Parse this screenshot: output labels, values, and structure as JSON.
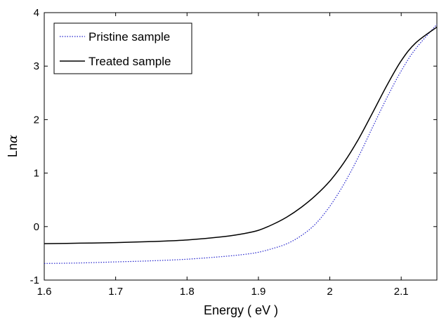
{
  "chart_data": {
    "type": "line",
    "xlabel": "Energy ( eV )",
    "ylabel_prefix": "Ln",
    "ylabel_symbol": "α",
    "xlim": [
      1.6,
      2.15
    ],
    "ylim": [
      -1,
      4
    ],
    "x_ticks": [
      1.6,
      1.7,
      1.8,
      1.9,
      2.0,
      2.1
    ],
    "x_tick_labels": [
      "1.6",
      "1.7",
      "1.8",
      "1.9",
      "2",
      "2.1"
    ],
    "y_ticks": [
      -1,
      0,
      1,
      2,
      3,
      4
    ],
    "y_tick_labels": [
      "-1",
      "0",
      "1",
      "2",
      "3",
      "4"
    ],
    "grid": false,
    "legend_position": "top-left",
    "series": [
      {
        "name": "Pristine sample",
        "color": "#2222cc",
        "style": "dotted",
        "x": [
          1.6,
          1.65,
          1.7,
          1.75,
          1.8,
          1.85,
          1.88,
          1.9,
          1.92,
          1.94,
          1.96,
          1.98,
          2.0,
          2.02,
          2.04,
          2.06,
          2.08,
          2.1,
          2.12,
          2.15
        ],
        "y": [
          -0.69,
          -0.68,
          -0.66,
          -0.64,
          -0.61,
          -0.56,
          -0.52,
          -0.48,
          -0.41,
          -0.32,
          -0.17,
          0.05,
          0.38,
          0.8,
          1.3,
          1.86,
          2.41,
          2.91,
          3.32,
          3.78
        ]
      },
      {
        "name": "Treated sample",
        "color": "#000000",
        "style": "solid",
        "x": [
          1.6,
          1.65,
          1.7,
          1.75,
          1.8,
          1.85,
          1.88,
          1.9,
          1.92,
          1.94,
          1.96,
          1.98,
          2.0,
          2.02,
          2.04,
          2.06,
          2.08,
          2.1,
          2.12,
          2.15
        ],
        "y": [
          -0.32,
          -0.31,
          -0.3,
          -0.28,
          -0.25,
          -0.19,
          -0.13,
          -0.07,
          0.04,
          0.18,
          0.36,
          0.58,
          0.85,
          1.2,
          1.63,
          2.13,
          2.64,
          3.1,
          3.43,
          3.73
        ]
      }
    ]
  }
}
